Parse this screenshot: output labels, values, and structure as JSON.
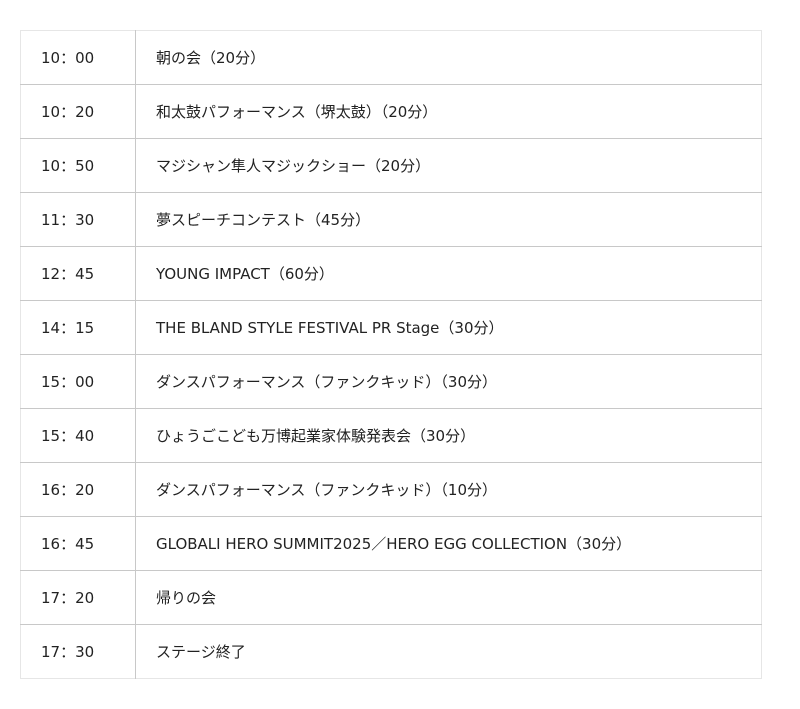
{
  "schedule": [
    {
      "time": "10：00",
      "program": "朝の会（20分）"
    },
    {
      "time": "10：20",
      "program": "和太鼓パフォーマンス（堺太鼓）（20分）"
    },
    {
      "time": "10：50",
      "program": "マジシャン隼人マジックショー（20分）"
    },
    {
      "time": "11：30",
      "program": "夢スピーチコンテスト（45分）"
    },
    {
      "time": "12：45",
      "program": "YOUNG IMPACT（60分）"
    },
    {
      "time": "14：15",
      "program": "THE BLAND STYLE FESTIVAL PR Stage（30分）"
    },
    {
      "time": "15：00",
      "program": "ダンスパフォーマンス（ファンクキッド）（30分）"
    },
    {
      "time": "15：40",
      "program": "ひょうごこども万博起業家体験発表会（30分）"
    },
    {
      "time": "16：20",
      "program": "ダンスパフォーマンス（ファンクキッド）（10分）"
    },
    {
      "time": "16：45",
      "program": "GLOBALI HERO SUMMIT2025／HERO EGG COLLECTION（30分）"
    },
    {
      "time": "17：20",
      "program": "帰りの会"
    },
    {
      "time": "17：30",
      "program": "ステージ終了"
    }
  ]
}
